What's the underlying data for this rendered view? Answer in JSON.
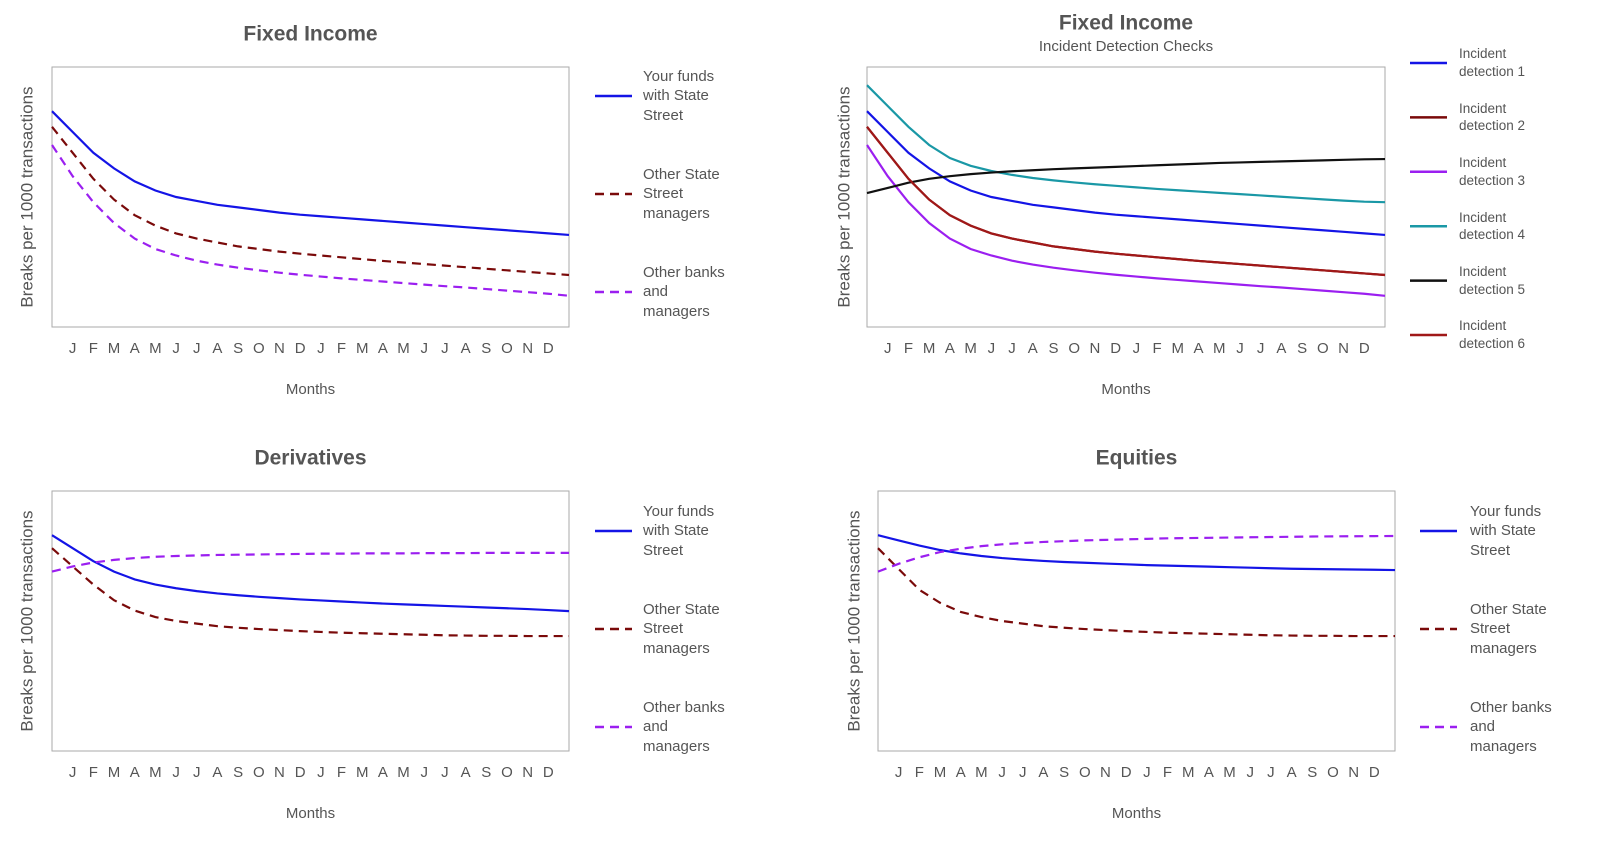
{
  "chart_data": [
    {
      "type": "line",
      "title": "Fixed Income",
      "xlabel": "Months",
      "ylabel": "Breaks per 1000 transactions",
      "categories": [
        null,
        "J",
        "F",
        "M",
        "A",
        "M",
        "J",
        "J",
        "A",
        "S",
        "O",
        "N",
        "D",
        "J",
        "F",
        "M",
        "A",
        "M",
        "J",
        "J",
        "A",
        "S",
        "O",
        "N",
        "D",
        null
      ],
      "ylim": [
        0,
        100
      ],
      "series": [
        {
          "name": "Your funds with State Street",
          "color": "#1414e6",
          "dashed": false,
          "values": [
            83,
            75,
            67,
            61,
            56,
            52.5,
            50,
            48.5,
            47,
            46,
            45,
            44,
            43.2,
            42.6,
            42,
            41.4,
            40.8,
            40.2,
            39.6,
            39,
            38.4,
            37.8,
            37.2,
            36.6,
            36,
            35.4
          ]
        },
        {
          "name": "Other State Street managers",
          "color": "#7a0a0a",
          "dashed": true,
          "values": [
            77,
            67,
            57,
            49,
            43,
            39,
            36,
            34,
            32.5,
            31,
            30,
            29,
            28.2,
            27.5,
            26.8,
            26.1,
            25.4,
            24.8,
            24.2,
            23.6,
            23,
            22.4,
            21.8,
            21.2,
            20.6,
            20
          ]
        },
        {
          "name": "Other banks and managers",
          "color": "#9b1ff0",
          "dashed": true,
          "values": [
            70,
            58,
            48,
            40,
            34,
            30,
            27.5,
            25.5,
            24,
            22.8,
            21.8,
            20.9,
            20.1,
            19.4,
            18.7,
            18.1,
            17.5,
            16.9,
            16.3,
            15.7,
            15.2,
            14.6,
            14,
            13.4,
            12.8,
            12
          ]
        }
      ]
    },
    {
      "type": "line",
      "title": "Fixed Income",
      "subtitle": "Incident Detection Checks",
      "xlabel": "Months",
      "ylabel": "Breaks per 1000 transactions",
      "categories": [
        null,
        "J",
        "F",
        "M",
        "A",
        "M",
        "J",
        "J",
        "A",
        "S",
        "O",
        "N",
        "D",
        "J",
        "F",
        "M",
        "A",
        "M",
        "J",
        "J",
        "A",
        "S",
        "O",
        "N",
        "D",
        null
      ],
      "ylim": [
        0,
        100
      ],
      "series": [
        {
          "name": "Incident detection 1",
          "color": "#1414e6",
          "dashed": false,
          "values": [
            83,
            75,
            67,
            61,
            56,
            52.5,
            50,
            48.5,
            47,
            46,
            45,
            44,
            43.2,
            42.6,
            42,
            41.4,
            40.8,
            40.2,
            39.6,
            39,
            38.4,
            37.8,
            37.2,
            36.6,
            36,
            35.4
          ]
        },
        {
          "name": "Incident detection 2",
          "color": "#7a0a0a",
          "dashed": false,
          "values": [
            77,
            67,
            57,
            49,
            43,
            39,
            36,
            34,
            32.5,
            31,
            30,
            29,
            28.2,
            27.5,
            26.8,
            26.1,
            25.4,
            24.8,
            24.2,
            23.6,
            23,
            22.4,
            21.8,
            21.2,
            20.6,
            20
          ]
        },
        {
          "name": "Incident detection 3",
          "color": "#9b1ff0",
          "dashed": false,
          "values": [
            70,
            58,
            48,
            40,
            34,
            30,
            27.5,
            25.5,
            24,
            22.8,
            21.8,
            20.9,
            20.1,
            19.4,
            18.7,
            18.1,
            17.5,
            16.9,
            16.3,
            15.7,
            15.2,
            14.6,
            14,
            13.4,
            12.8,
            12
          ]
        },
        {
          "name": "Incident detection 4",
          "color": "#1a98a6",
          "dashed": false,
          "values": [
            93,
            85,
            77,
            70,
            65,
            62,
            60,
            58.5,
            57.3,
            56.4,
            55.6,
            54.9,
            54.3,
            53.7,
            53.1,
            52.6,
            52.1,
            51.6,
            51.1,
            50.6,
            50.1,
            49.6,
            49.1,
            48.6,
            48.2,
            48
          ]
        },
        {
          "name": "Incident detection 5",
          "color": "#111111",
          "dashed": false,
          "values": [
            51.5,
            53.5,
            55.5,
            57,
            58,
            58.8,
            59.4,
            59.9,
            60.3,
            60.7,
            61,
            61.3,
            61.6,
            61.9,
            62.2,
            62.5,
            62.8,
            63.1,
            63.3,
            63.5,
            63.7,
            63.9,
            64.1,
            64.3,
            64.5,
            64.6
          ]
        },
        {
          "name": "Incident detection 6",
          "color": "#a01818",
          "dashed": false,
          "values": [
            77,
            67,
            57,
            49,
            43,
            39,
            36,
            34,
            32.5,
            31,
            30,
            29,
            28.2,
            27.5,
            26.8,
            26.1,
            25.4,
            24.8,
            24.2,
            23.6,
            23,
            22.4,
            21.8,
            21.2,
            20.6,
            20
          ]
        }
      ]
    },
    {
      "type": "line",
      "title": "Derivatives",
      "xlabel": "Months",
      "ylabel": "Breaks per 1000 transactions",
      "categories": [
        null,
        "J",
        "F",
        "M",
        "A",
        "M",
        "J",
        "J",
        "A",
        "S",
        "O",
        "N",
        "D",
        "J",
        "F",
        "M",
        "A",
        "M",
        "J",
        "J",
        "A",
        "S",
        "O",
        "N",
        "D",
        null
      ],
      "ylim": [
        0,
        100
      ],
      "series": [
        {
          "name": "Your funds with State Street",
          "color": "#1414e6",
          "dashed": false,
          "values": [
            83,
            78,
            73,
            69,
            66,
            64,
            62.6,
            61.5,
            60.6,
            59.9,
            59.3,
            58.8,
            58.3,
            57.9,
            57.5,
            57.1,
            56.7,
            56.4,
            56.1,
            55.8,
            55.5,
            55.2,
            54.9,
            54.6,
            54.2,
            53.8
          ]
        },
        {
          "name": "Other State Street managers",
          "color": "#7a0a0a",
          "dashed": true,
          "values": [
            78,
            71,
            64,
            58,
            54,
            51.5,
            50,
            49,
            48,
            47.4,
            46.9,
            46.5,
            46.1,
            45.8,
            45.5,
            45.3,
            45.1,
            44.9,
            44.7,
            44.5,
            44.4,
            44.3,
            44.3,
            44.2,
            44.2,
            44.2
          ]
        },
        {
          "name": "Other banks and managers",
          "color": "#9b1ff0",
          "dashed": true,
          "values": [
            69,
            71,
            72.5,
            73.5,
            74.2,
            74.7,
            75,
            75.2,
            75.4,
            75.5,
            75.6,
            75.7,
            75.8,
            75.9,
            75.9,
            76,
            76,
            76,
            76.1,
            76.1,
            76.1,
            76.2,
            76.2,
            76.2,
            76.2,
            76.2
          ]
        }
      ]
    },
    {
      "type": "line",
      "title": "Equities",
      "xlabel": "Months",
      "ylabel": "Breaks per 1000 transactions",
      "categories": [
        null,
        "J",
        "F",
        "M",
        "A",
        "M",
        "J",
        "J",
        "A",
        "S",
        "O",
        "N",
        "D",
        "J",
        "F",
        "M",
        "A",
        "M",
        "J",
        "J",
        "A",
        "S",
        "O",
        "N",
        "D",
        null
      ],
      "ylim": [
        0,
        100
      ],
      "series": [
        {
          "name": "Your funds with State Street",
          "color": "#1414e6",
          "dashed": false,
          "values": [
            83,
            81,
            79,
            77.3,
            76,
            75,
            74.2,
            73.6,
            73.1,
            72.7,
            72.4,
            72.1,
            71.8,
            71.5,
            71.3,
            71.1,
            70.9,
            70.7,
            70.5,
            70.3,
            70.1,
            70,
            69.9,
            69.8,
            69.7,
            69.6
          ]
        },
        {
          "name": "Other State Street managers",
          "color": "#7a0a0a",
          "dashed": true,
          "values": [
            78,
            70,
            62,
            57,
            53.5,
            51.5,
            50,
            49,
            48,
            47.4,
            46.9,
            46.5,
            46.1,
            45.8,
            45.5,
            45.3,
            45.1,
            44.9,
            44.7,
            44.5,
            44.4,
            44.3,
            44.3,
            44.2,
            44.2,
            44.2
          ]
        },
        {
          "name": "Other banks and managers",
          "color": "#9b1ff0",
          "dashed": true,
          "values": [
            69,
            72,
            74.5,
            76.5,
            77.8,
            78.8,
            79.5,
            80,
            80.4,
            80.7,
            81,
            81.2,
            81.4,
            81.6,
            81.8,
            81.9,
            82,
            82.1,
            82.2,
            82.3,
            82.4,
            82.5,
            82.55,
            82.6,
            82.65,
            82.7
          ]
        }
      ]
    }
  ]
}
